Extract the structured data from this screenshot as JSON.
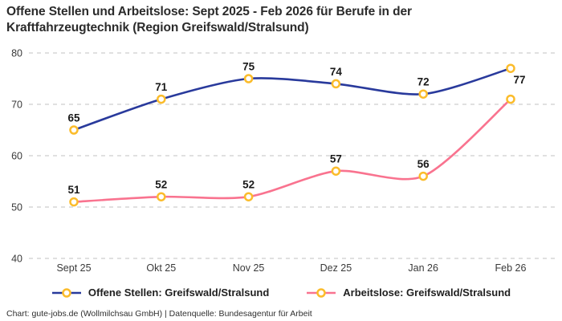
{
  "header": {
    "title_line1": "Offene Stellen und Arbeitslose: Sept 2025 - Feb 2026 für Berufe in der",
    "title_line2": "Kraftfahrzeugtechnik (Region Greifswald/Stralsund)"
  },
  "chart_data": {
    "type": "line",
    "categories": [
      "Sept 25",
      "Okt 25",
      "Nov 25",
      "Dez 25",
      "Jan 26",
      "Feb 26"
    ],
    "series": [
      {
        "name": "Offene Stellen: Greifswald/Stralsund",
        "color": "#293A9C",
        "values": [
          65,
          71,
          75,
          74,
          72,
          77
        ],
        "point_labels": [
          "65",
          "71",
          "75",
          "74",
          "72",
          "77"
        ],
        "label_positions": [
          "above",
          "above",
          "above",
          "above",
          "above",
          "below-right"
        ]
      },
      {
        "name": "Arbeitslose: Greifswald/Stralsund",
        "color": "#F9738F",
        "values": [
          51,
          52,
          52,
          57,
          56,
          71
        ],
        "point_labels": [
          "51",
          "52",
          "52",
          "57",
          "56",
          ""
        ],
        "label_positions": [
          "above",
          "above",
          "above",
          "above",
          "above",
          "above"
        ]
      }
    ],
    "ylim": [
      40,
      80
    ],
    "yticks": [
      80,
      70,
      60,
      50,
      40
    ],
    "grid": "horizontal-dashed",
    "legend_position": "bottom-center",
    "marker_style": {
      "shape": "circle-open",
      "stroke": "#FBBC2B",
      "fill": "#FFFFFF"
    }
  },
  "footer": {
    "text": "Chart: gute-jobs.de (Wollmilchsau GmbH) | Datenquelle: Bundesagentur für Arbeit"
  },
  "colors": {
    "grid": "#CDCDCD",
    "axis_text": "#3a3a3a",
    "point_label_text": "#1a1a1a",
    "title_text": "#2b2b2b",
    "background": "#FFFFFF"
  }
}
